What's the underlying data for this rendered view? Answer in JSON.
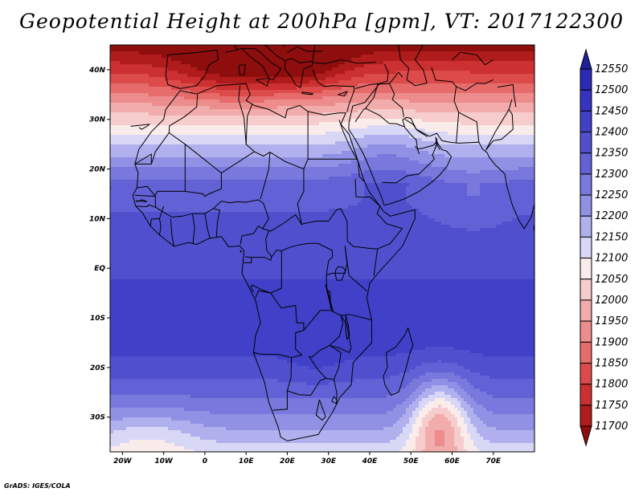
{
  "title": "Geopotential Height at 200hPa [gpm], VT: 2017122300",
  "footer": "GrADS: IGES/COLA",
  "chart_data": {
    "type": "heatmap",
    "title": "Geopotential Height at 200hPa [gpm], VT: 2017122300",
    "variable": "Geopotential Height",
    "level": "200hPa",
    "units": "gpm",
    "valid_time": "2017122300",
    "lon_range": [
      -23,
      80
    ],
    "lat_range": [
      -37,
      45
    ],
    "x_ticks": [
      {
        "value": -20,
        "label": "20W"
      },
      {
        "value": -10,
        "label": "10W"
      },
      {
        "value": 0,
        "label": "0"
      },
      {
        "value": 10,
        "label": "10E"
      },
      {
        "value": 20,
        "label": "20E"
      },
      {
        "value": 30,
        "label": "30E"
      },
      {
        "value": 40,
        "label": "40E"
      },
      {
        "value": 50,
        "label": "50E"
      },
      {
        "value": 60,
        "label": "60E"
      },
      {
        "value": 70,
        "label": "70E"
      }
    ],
    "y_ticks": [
      {
        "value": 40,
        "label": "40N"
      },
      {
        "value": 30,
        "label": "30N"
      },
      {
        "value": 20,
        "label": "20N"
      },
      {
        "value": 10,
        "label": "10N"
      },
      {
        "value": 0,
        "label": "EQ"
      },
      {
        "value": -10,
        "label": "10S"
      },
      {
        "value": -20,
        "label": "20S"
      },
      {
        "value": -30,
        "label": "30S"
      }
    ],
    "colorbar": {
      "levels": [
        12550,
        12500,
        12450,
        12400,
        12350,
        12300,
        12250,
        12200,
        12150,
        12100,
        12050,
        12000,
        11950,
        11900,
        11850,
        11800,
        11750,
        11700
      ],
      "colors": [
        "#1f1f9a",
        "#2a2ab4",
        "#3434c0",
        "#4040c8",
        "#5050cf",
        "#6262d6",
        "#7878dd",
        "#9090e5",
        "#b0b0ee",
        "#d8d8f6",
        "#fbecec",
        "#f7cccc",
        "#f2acac",
        "#ec8c8c",
        "#e66c6c",
        "#dc4a4a",
        "#cc3030",
        "#b01c1c",
        "#8e0e0e"
      ]
    },
    "features": [
      {
        "name": "subtropical-high-band",
        "description": "12400-12450 gpm over central/southern Africa and Indian Ocean"
      },
      {
        "name": "mediterranean-trough",
        "description": "values below 11750 gpm over the Mediterranean"
      },
      {
        "name": "south-indian-ocean-ridge-break",
        "description": "lower heights near 56E, 30S"
      }
    ]
  }
}
